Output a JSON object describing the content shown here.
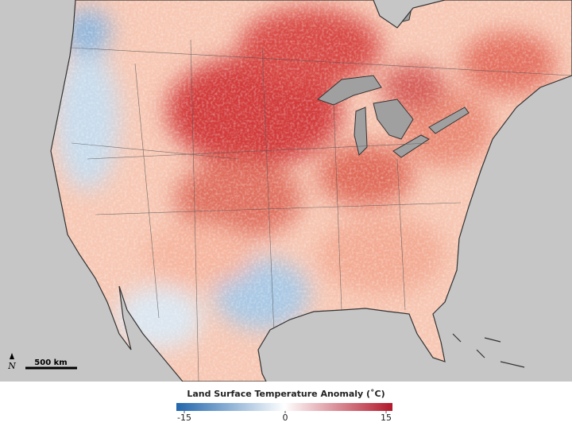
{
  "scale_bar": {
    "label": "500 km"
  },
  "north_arrow": {
    "label": "N"
  },
  "legend": {
    "title": "Land Surface Temperature Anomaly (˚C)",
    "range": [
      -15,
      15
    ],
    "ticks": [
      -15,
      0,
      15
    ],
    "colors": [
      "#2166ac",
      "#ffffff",
      "#b2182b"
    ]
  }
}
